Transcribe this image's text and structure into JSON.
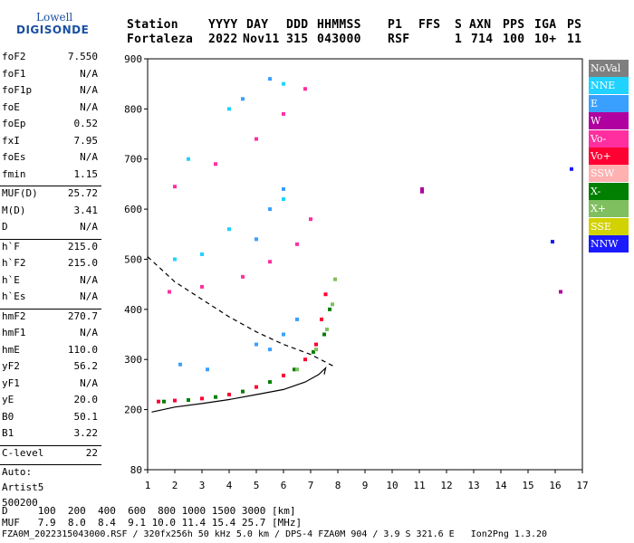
{
  "logo": {
    "line1": "Lowell",
    "line2": "DIGISONDE"
  },
  "header": {
    "station_label": "Station",
    "station_value": "Fortaleza",
    "year_label": "YYYY",
    "year_value": "2022",
    "day_label": "DAY",
    "day_value": "Nov11",
    "doy_label": "DDD",
    "doy_value": "315",
    "time_label": "HHMMSS",
    "time_value": "043000",
    "p1_label": "P1",
    "p1_value": "RSF",
    "ffs_label": "FFS",
    "ffs_value": "",
    "s_label": "S",
    "s_value": "1",
    "axn_label": "AXN",
    "axn_value": "714",
    "pps_label": "PPS",
    "pps_value": "100",
    "iga_label": "IGA",
    "iga_value": "10+",
    "ps_label": "PS",
    "ps_value": "11"
  },
  "params_groups": [
    [
      [
        "foF2",
        "7.550"
      ],
      [
        "foF1",
        "N/A"
      ],
      [
        "foF1p",
        "N/A"
      ],
      [
        "foE",
        "N/A"
      ],
      [
        "foEp",
        "0.52"
      ],
      [
        "fxI",
        "7.95"
      ],
      [
        "foEs",
        "N/A"
      ],
      [
        "fmin",
        "1.15"
      ]
    ],
    [
      [
        "MUF(D)",
        "25.72"
      ],
      [
        "M(D)",
        "3.41"
      ],
      [
        "D",
        "N/A"
      ]
    ],
    [
      [
        "h`F",
        "215.0"
      ],
      [
        "h`F2",
        "215.0"
      ],
      [
        "h`E",
        "N/A"
      ],
      [
        "h`Es",
        "N/A"
      ]
    ],
    [
      [
        "hmF2",
        "270.7"
      ],
      [
        "hmF1",
        "N/A"
      ],
      [
        "hmE",
        "110.0"
      ],
      [
        "yF2",
        "56.2"
      ],
      [
        "yF1",
        "N/A"
      ],
      [
        "yE",
        "20.0"
      ],
      [
        "B0",
        "50.1"
      ],
      [
        "B1",
        "3.22"
      ]
    ],
    [
      [
        "C-level",
        "22"
      ]
    ]
  ],
  "autoscale": {
    "line1": "Auto:",
    "line2": "Artist5",
    "line3": "500200"
  },
  "legend": [
    {
      "label": "NoVal",
      "color": "#7f7f7f"
    },
    {
      "label": "NNE",
      "color": "#1fd2ff"
    },
    {
      "label": "E",
      "color": "#3aa0ff"
    },
    {
      "label": "W",
      "color": "#b0009f"
    },
    {
      "label": "Vo-",
      "color": "#ff2fa0"
    },
    {
      "label": "Vo+",
      "color": "#ff0033"
    },
    {
      "label": "SSW",
      "color": "#ffb0b0"
    },
    {
      "label": "X-",
      "color": "#007f00"
    },
    {
      "label": "X+",
      "color": "#7fbf5f"
    },
    {
      "label": "SSE",
      "color": "#d2d200"
    },
    {
      "label": "NNW",
      "color": "#1a1aff"
    }
  ],
  "footer": {
    "line1": "D     100  200  400  600  800 1000 1500 3000 [km]",
    "line2": "MUF   7.9  8.0  8.4  9.1 10.0 11.4 15.4 25.7 [MHz]",
    "line3": "FZA0M_2022315043000.RSF / 320fx256h 50 kHz 5.0 km / DPS-4 FZA0M 904 / 3.9 S 321.6 E   Ion2Png 1.3.20"
  },
  "chart_data": {
    "type": "scatter",
    "xlabel": "",
    "ylabel": "",
    "xlim": [
      1,
      17
    ],
    "ylim": [
      80,
      900
    ],
    "x_ticks": [
      1,
      2,
      3,
      4,
      5,
      6,
      7,
      8,
      9,
      10,
      11,
      12,
      13,
      14,
      15,
      16,
      17
    ],
    "y_ticks": [
      80,
      200,
      300,
      400,
      500,
      600,
      700,
      800,
      900
    ],
    "grid": false,
    "series": [
      {
        "name": "Vo+",
        "values": [
          [
            1.4,
            216
          ],
          [
            2.0,
            218
          ],
          [
            3.0,
            222
          ],
          [
            4.0,
            230
          ],
          [
            5.0,
            245
          ],
          [
            6.0,
            268
          ],
          [
            6.8,
            300
          ],
          [
            7.2,
            330
          ],
          [
            7.4,
            380
          ],
          [
            7.55,
            430
          ]
        ]
      },
      {
        "name": "X-",
        "values": [
          [
            1.6,
            216
          ],
          [
            2.5,
            219
          ],
          [
            3.5,
            225
          ],
          [
            4.5,
            236
          ],
          [
            5.5,
            255
          ],
          [
            6.4,
            280
          ],
          [
            7.1,
            315
          ],
          [
            7.5,
            350
          ],
          [
            7.7,
            400
          ]
        ]
      },
      {
        "name": "X+",
        "values": [
          [
            6.5,
            280
          ],
          [
            7.2,
            320
          ],
          [
            7.6,
            360
          ],
          [
            7.8,
            410
          ],
          [
            7.9,
            460
          ]
        ]
      },
      {
        "name": "Vo-",
        "values": [
          [
            1.8,
            435
          ],
          [
            3.0,
            445
          ],
          [
            4.5,
            465
          ],
          [
            5.5,
            495
          ],
          [
            6.5,
            530
          ],
          [
            7.0,
            580
          ],
          [
            2.0,
            645
          ],
          [
            3.5,
            690
          ],
          [
            5.0,
            740
          ],
          [
            6.0,
            790
          ],
          [
            6.8,
            840
          ]
        ]
      },
      {
        "name": "E",
        "values": [
          [
            5.0,
            330
          ],
          [
            5.5,
            320
          ],
          [
            6.0,
            350
          ],
          [
            6.5,
            380
          ],
          [
            5.0,
            540
          ],
          [
            5.5,
            600
          ],
          [
            6.0,
            640
          ],
          [
            4.5,
            820
          ],
          [
            5.5,
            860
          ],
          [
            3.2,
            280
          ],
          [
            2.2,
            290
          ]
        ]
      },
      {
        "name": "NNE",
        "values": [
          [
            2.0,
            500
          ],
          [
            3.0,
            510
          ],
          [
            4.0,
            560
          ],
          [
            6.0,
            620
          ],
          [
            2.5,
            700
          ],
          [
            4.0,
            800
          ],
          [
            6.0,
            850
          ]
        ]
      },
      {
        "name": "W",
        "values": [
          [
            11.1,
            640
          ],
          [
            11.1,
            635
          ],
          [
            16.2,
            435
          ]
        ]
      },
      {
        "name": "NNW",
        "values": [
          [
            15.9,
            535
          ],
          [
            16.6,
            680
          ]
        ]
      }
    ],
    "curves": [
      {
        "name": "profile",
        "values": [
          [
            1.15,
            195
          ],
          [
            2.0,
            205
          ],
          [
            3.0,
            212
          ],
          [
            4.0,
            220
          ],
          [
            5.0,
            230
          ],
          [
            6.0,
            240
          ],
          [
            6.8,
            255
          ],
          [
            7.3,
            270
          ],
          [
            7.55,
            283
          ],
          [
            7.5,
            270
          ]
        ]
      },
      {
        "name": "muf",
        "values": [
          [
            1.0,
            505
          ],
          [
            1.5,
            480
          ],
          [
            2.0,
            455
          ],
          [
            3.0,
            420
          ],
          [
            4.0,
            385
          ],
          [
            5.0,
            355
          ],
          [
            6.0,
            330
          ],
          [
            7.0,
            310
          ],
          [
            7.9,
            285
          ]
        ]
      }
    ]
  }
}
